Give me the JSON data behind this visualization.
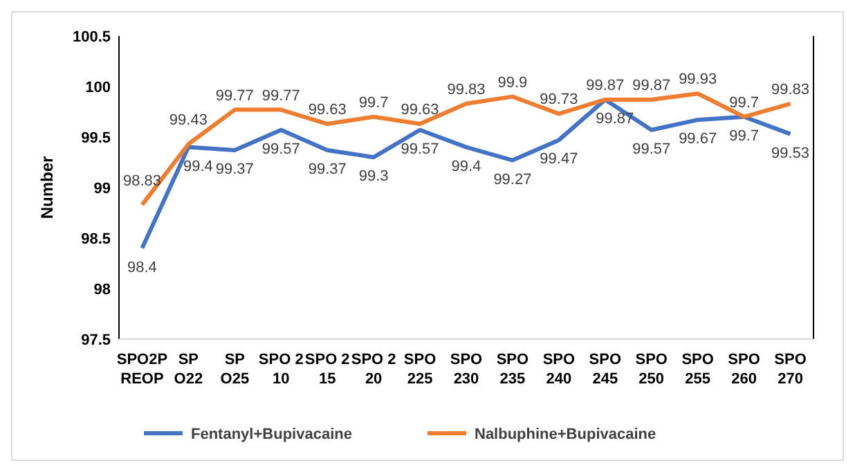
{
  "chart_data": {
    "type": "line",
    "ylabel": "Number",
    "categories": [
      "SPO2P REOP",
      "SP O22",
      "SP O25",
      "SPO 2 10",
      "SPO 2 15",
      "SPO 2 20",
      "SPO 225",
      "SPO 230",
      "SPO 235",
      "SPO 240",
      "SPO 245",
      "SPO 250",
      "SPO 255",
      "SPO 260",
      "SPO 270"
    ],
    "series": [
      {
        "name": "Fentanyl+Bupivacaine",
        "color": "#4472c4",
        "values": [
          98.4,
          99.4,
          99.37,
          99.57,
          99.37,
          99.3,
          99.57,
          99.4,
          99.27,
          99.47,
          99.87,
          99.57,
          99.67,
          99.7,
          99.53
        ]
      },
      {
        "name": "Nalbuphine+Bupivacaine",
        "color": "#ed7d31",
        "values": [
          98.83,
          99.43,
          99.77,
          99.77,
          99.63,
          99.7,
          99.63,
          99.83,
          99.9,
          99.73,
          99.87,
          99.87,
          99.93,
          99.7,
          99.83
        ]
      }
    ],
    "ylim": [
      97.5,
      100.5
    ],
    "yticks": [
      97.5,
      98,
      98.5,
      99,
      99.5,
      100,
      100.5
    ],
    "grid": false,
    "legend": "bottom",
    "data_labels": true,
    "marker": "none",
    "line_style": "solid"
  }
}
